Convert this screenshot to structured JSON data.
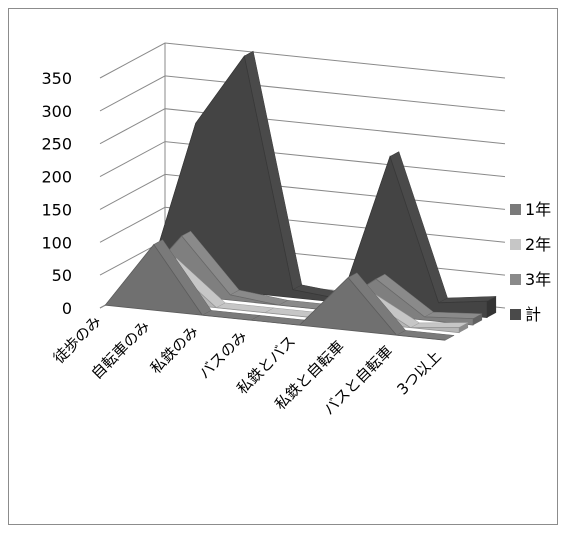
{
  "chart_data": {
    "type": "area",
    "style": "3d-ribbon",
    "categories": [
      "徒歩のみ",
      "自転車のみ",
      "私鉄のみ",
      "バスのみ",
      "私鉄とバス",
      "私鉄と自転車",
      "バスと自転車",
      "3つ以上"
    ],
    "series": [
      {
        "name": "1年",
        "values": [
          0,
          100,
          0,
          0,
          0,
          80,
          0,
          0
        ],
        "color": "#7a7a7a"
      },
      {
        "name": "2年",
        "values": [
          0,
          60,
          0,
          0,
          0,
          40,
          0,
          8
        ],
        "color": "#c6c6c6"
      },
      {
        "name": "3年",
        "values": [
          0,
          90,
          8,
          0,
          0,
          55,
          5,
          10
        ],
        "color": "#8a8a8a"
      },
      {
        "name": "計",
        "values": [
          0,
          250,
          360,
          12,
          5,
          230,
          15,
          25
        ],
        "color": "#4a4a4a"
      }
    ],
    "yticks": [
      0,
      50,
      100,
      150,
      200,
      250,
      300,
      350
    ],
    "ylim": [
      0,
      350
    ],
    "grid": true,
    "legend": "right"
  }
}
